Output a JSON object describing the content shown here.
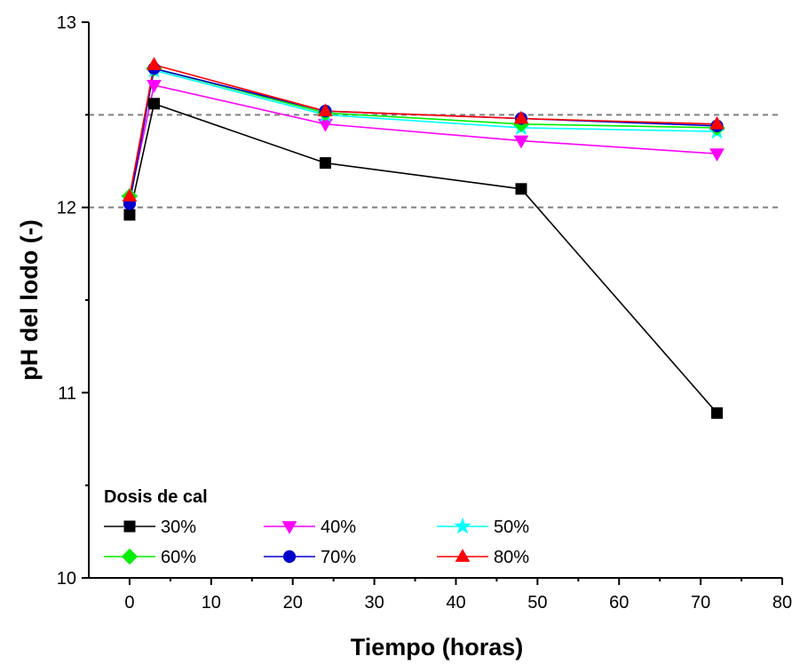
{
  "chart_data": {
    "type": "line",
    "xlabel": "Tiempo (horas)",
    "ylabel": "pH del lodo (-)",
    "xlim": [
      -5,
      80
    ],
    "ylim": [
      10,
      13
    ],
    "xticks": [
      0,
      10,
      20,
      30,
      40,
      50,
      60,
      70,
      80
    ],
    "yticks": [
      10,
      11,
      12,
      13
    ],
    "reference_lines": [
      12.5,
      12.0
    ],
    "legend_title": "Dosis de cal",
    "legend_position": "bottom-left",
    "series": [
      {
        "name": "30%",
        "color": "#000000",
        "marker": "square",
        "x": [
          0,
          3,
          24,
          48,
          72
        ],
        "y": [
          11.96,
          12.56,
          12.24,
          12.1,
          10.89
        ]
      },
      {
        "name": "40%",
        "color": "#ff00ff",
        "marker": "triangle-down",
        "x": [
          0,
          3,
          24,
          48,
          72
        ],
        "y": [
          12.04,
          12.66,
          12.45,
          12.36,
          12.29
        ]
      },
      {
        "name": "50%",
        "color": "#00ffff",
        "marker": "star",
        "x": [
          0,
          3,
          24,
          48,
          72
        ],
        "y": [
          12.05,
          12.74,
          12.5,
          12.43,
          12.41
        ]
      },
      {
        "name": "60%",
        "color": "#00ee00",
        "marker": "diamond",
        "x": [
          0,
          3,
          24,
          48,
          72
        ],
        "y": [
          12.06,
          12.75,
          12.51,
          12.45,
          12.43
        ]
      },
      {
        "name": "70%",
        "color": "#0000cc",
        "marker": "circle",
        "x": [
          0,
          3,
          24,
          48,
          72
        ],
        "y": [
          12.02,
          12.75,
          12.52,
          12.48,
          12.44
        ]
      },
      {
        "name": "80%",
        "color": "#ff0000",
        "marker": "triangle-up",
        "x": [
          0,
          3,
          24,
          48,
          72
        ],
        "y": [
          12.06,
          12.77,
          12.52,
          12.48,
          12.45
        ]
      }
    ]
  }
}
